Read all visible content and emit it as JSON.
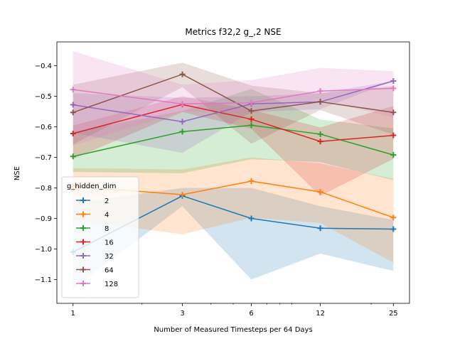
{
  "chart_data": {
    "type": "line",
    "title": "Metrics f32,2 g_,2 NSE",
    "xlabel": "Number of Measured Timesteps per 64 Days",
    "ylabel": "NSE",
    "x_scale": "log",
    "xlim": [
      0.85,
      29.4
    ],
    "ylim": [
      -1.178,
      -0.322
    ],
    "x": [
      1,
      3,
      6,
      12,
      25
    ],
    "x_tick_labels": [
      "1",
      "3",
      "6",
      "12",
      "25"
    ],
    "y_ticks": [
      -1.1,
      -1.0,
      -0.9,
      -0.8,
      -0.7,
      -0.6,
      -0.5,
      -0.4
    ],
    "y_tick_labels": [
      "−1.1",
      "−1.0",
      "−0.9",
      "−0.8",
      "−0.7",
      "−0.6",
      "−0.5",
      "−0.4"
    ],
    "legend": {
      "title": "g_hidden_dim",
      "placement": "center-left"
    },
    "grid": false,
    "series": [
      {
        "name": "2",
        "color": "#1f77b4",
        "values": [
          -1.01,
          -0.826,
          -0.9,
          -0.932,
          -0.935
        ],
        "lower": [
          -1.13,
          -0.86,
          -1.1,
          -1.015,
          -1.072
        ],
        "upper": [
          -0.85,
          -0.8,
          -0.8,
          -0.86,
          -0.905
        ]
      },
      {
        "name": "4",
        "color": "#ff7f0e",
        "values": [
          -0.795,
          -0.822,
          -0.778,
          -0.813,
          -0.897
        ],
        "lower": [
          -0.905,
          -0.952,
          -0.898,
          -0.915,
          -1.045
        ],
        "upper": [
          -0.735,
          -0.74,
          -0.7,
          -0.72,
          -0.77
        ]
      },
      {
        "name": "8",
        "color": "#2ca02c",
        "values": [
          -0.697,
          -0.616,
          -0.595,
          -0.624,
          -0.692
        ],
        "lower": [
          -0.748,
          -0.752,
          -0.706,
          -0.715,
          -0.775
        ],
        "upper": [
          -0.617,
          -0.548,
          -0.476,
          -0.576,
          -0.605
        ]
      },
      {
        "name": "16",
        "color": "#d62728",
        "values": [
          -0.622,
          -0.527,
          -0.575,
          -0.648,
          -0.628
        ],
        "lower": [
          -0.705,
          -0.552,
          -0.606,
          -0.826,
          -0.705
        ],
        "upper": [
          -0.596,
          -0.5,
          -0.544,
          -0.602,
          -0.532
        ]
      },
      {
        "name": "32",
        "color": "#9467bd",
        "values": [
          -0.528,
          -0.583,
          -0.525,
          -0.518,
          -0.45
        ],
        "lower": [
          -0.62,
          -0.685,
          -0.552,
          -0.542,
          -0.45
        ],
        "upper": [
          -0.49,
          -0.505,
          -0.5,
          -0.49,
          -0.45
        ]
      },
      {
        "name": "64",
        "color": "#8c564b",
        "values": [
          -0.553,
          -0.428,
          -0.548,
          -0.518,
          -0.553
        ],
        "lower": [
          -0.658,
          -0.47,
          -0.655,
          -0.545,
          -0.626
        ],
        "upper": [
          -0.462,
          -0.39,
          -0.465,
          -0.49,
          -0.466
        ]
      },
      {
        "name": "128",
        "color": "#e377c2",
        "values": [
          -0.478,
          -0.525,
          -0.521,
          -0.483,
          -0.474
        ],
        "lower": [
          -0.662,
          -0.548,
          -0.556,
          -0.51,
          -0.57
        ],
        "upper": [
          -0.352,
          -0.462,
          -0.447,
          -0.407,
          -0.418
        ]
      }
    ]
  }
}
